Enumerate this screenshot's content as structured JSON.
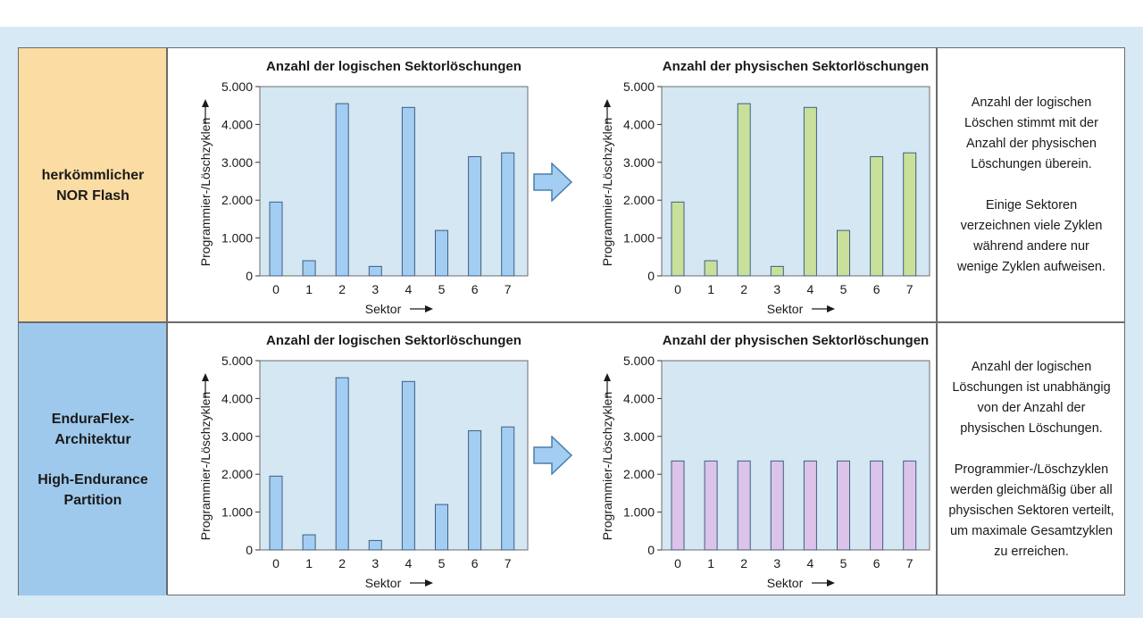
{
  "colors": {
    "frame_bg": "#d6e9f5",
    "row1_label_bg": "#fbdca3",
    "row2_label_bg": "#9ec9ec",
    "plot_bg": "#d4e7f3",
    "bar_blue": "#a3cdf2",
    "bar_green": "#c9e09a",
    "bar_purple": "#dcc3ea",
    "arrow_fill": "#a3cdf2"
  },
  "rows": [
    {
      "label_lines": [
        "herkömmlicher",
        "NOR Flash"
      ],
      "description_paragraphs": [
        [
          "Anzahl der logischen",
          "Löschen stimmt mit der",
          "Anzahl der physischen",
          "Löschungen überein."
        ],
        [
          "Einige Sektoren",
          "verzeichnen viele Zyklen",
          "während andere nur",
          "wenige Zyklen aufweisen."
        ]
      ]
    },
    {
      "label_lines": [
        "EnduraFlex-",
        "Architektur",
        "",
        "High-Endurance",
        "Partition"
      ],
      "description_paragraphs": [
        [
          "Anzahl der logischen",
          "Löschungen ist unabhängig",
          "von der Anzahl der",
          "physischen Löschungen."
        ],
        [
          "Programmier-/Löschzyklen",
          "werden gleichmäßig über all",
          "physischen Sektoren verteilt,",
          "um maximale Gesamtzyklen",
          "zu erreichen."
        ]
      ]
    }
  ],
  "chart_data": [
    {
      "type": "bar",
      "title": "Anzahl der logischen Sektorlöschungen",
      "xlabel": "Sektor",
      "ylabel": "Programmier-/Löschzyklen",
      "categories": [
        "0",
        "1",
        "2",
        "3",
        "4",
        "5",
        "6",
        "7"
      ],
      "values": [
        1950,
        400,
        4550,
        250,
        4450,
        1200,
        3150,
        3250
      ],
      "yticks": [
        "0",
        "1.000",
        "2.000",
        "3.000",
        "4.000",
        "5.000"
      ],
      "ylim": [
        0,
        5000
      ],
      "bar_color": "#a3cdf2"
    },
    {
      "type": "bar",
      "title": "Anzahl der physischen Sektorlöschungen",
      "xlabel": "Sektor",
      "ylabel": "Programmier-/Löschzyklen",
      "categories": [
        "0",
        "1",
        "2",
        "3",
        "4",
        "5",
        "6",
        "7"
      ],
      "values": [
        1950,
        400,
        4550,
        250,
        4450,
        1200,
        3150,
        3250
      ],
      "yticks": [
        "0",
        "1.000",
        "2.000",
        "3.000",
        "4.000",
        "5.000"
      ],
      "ylim": [
        0,
        5000
      ],
      "bar_color": "#c9e09a"
    },
    {
      "type": "bar",
      "title": "Anzahl der logischen Sektorlöschungen",
      "xlabel": "Sektor",
      "ylabel": "Programmier-/Löschzyklen",
      "categories": [
        "0",
        "1",
        "2",
        "3",
        "4",
        "5",
        "6",
        "7"
      ],
      "values": [
        1950,
        400,
        4550,
        250,
        4450,
        1200,
        3150,
        3250
      ],
      "yticks": [
        "0",
        "1.000",
        "2.000",
        "3.000",
        "4.000",
        "5.000"
      ],
      "ylim": [
        0,
        5000
      ],
      "bar_color": "#a3cdf2"
    },
    {
      "type": "bar",
      "title": "Anzahl der physischen Sektorlöschungen",
      "xlabel": "Sektor",
      "ylabel": "Programmier-/Löschzyklen",
      "categories": [
        "0",
        "1",
        "2",
        "3",
        "4",
        "5",
        "6",
        "7"
      ],
      "values": [
        2350,
        2350,
        2350,
        2350,
        2350,
        2350,
        2350,
        2350
      ],
      "yticks": [
        "0",
        "1.000",
        "2.000",
        "3.000",
        "4.000",
        "5.000"
      ],
      "ylim": [
        0,
        5000
      ],
      "bar_color": "#dcc3ea"
    }
  ]
}
